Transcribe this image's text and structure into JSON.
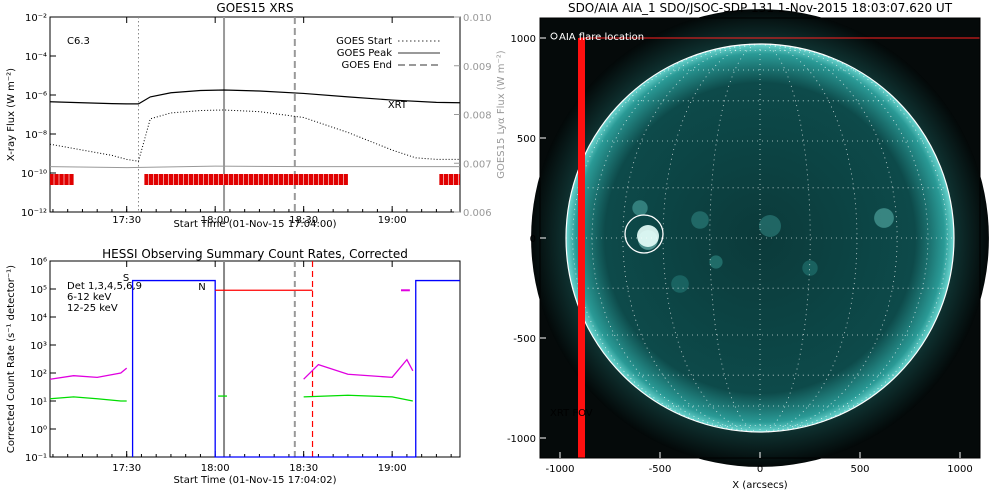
{
  "chart_data": [
    {
      "type": "line",
      "title": "GOES15 XRS",
      "xlabel": "Start Time (01-Nov-15 17:04:00)",
      "ylabel": "X-ray Flux (W m⁻²)",
      "y2label": "GOES15 Lyα Flux (W m⁻²)",
      "y_scale": "log",
      "ylim": [
        1e-12,
        0.01
      ],
      "y2lim": [
        0.006,
        0.01
      ],
      "xlim": [
        "17:04",
        "19:23"
      ],
      "x_ticks": [
        "17:30",
        "18:00",
        "18:30",
        "19:00"
      ],
      "y_ticks": [
        "10⁻²",
        "10⁻⁴",
        "10⁻⁶",
        "10⁻⁸",
        "10⁻¹⁰",
        "10⁻¹²"
      ],
      "y2_ticks": [
        "0.010",
        "0.009",
        "0.008",
        "0.007",
        "0.006"
      ],
      "class_label": "C6.3",
      "xrt_label": "XRT",
      "legend": [
        "GOES Start",
        "GOES Peak",
        "GOES End"
      ],
      "legend_position": "top-right",
      "markers": {
        "start": "17:34",
        "peak": "18:03",
        "end": "18:27"
      },
      "series": [
        {
          "x": [
            "17:04",
            "17:15",
            "17:25",
            "17:30",
            "17:34",
            "17:38",
            "17:45",
            "17:55",
            "18:03",
            "18:15",
            "18:30",
            "18:45",
            "19:00",
            "19:15",
            "19:23"
          ],
          "values": [
            4.5e-07,
            4e-07,
            3.6e-07,
            3.5e-07,
            3.5e-07,
            8e-07,
            1.3e-06,
            1.7e-06,
            1.8e-06,
            1.6e-06,
            1.2e-06,
            8e-07,
            5.5e-07,
            4.2e-07,
            4e-07
          ]
        },
        {
          "x": [
            "17:04",
            "17:15",
            "17:25",
            "17:30",
            "17:34",
            "17:38",
            "17:45",
            "17:55",
            "18:03",
            "18:15",
            "18:30",
            "18:45",
            "19:00",
            "19:08",
            "19:15",
            "19:23"
          ],
          "values": [
            3e-09,
            1.5e-09,
            8e-10,
            5e-10,
            4e-10,
            6e-08,
            1.2e-07,
            1.6e-07,
            1.7e-07,
            1.4e-07,
            7e-08,
            1.2e-08,
            1.5e-09,
            6e-10,
            5e-10,
            5e-10
          ]
        },
        {
          "x": [
            "17:04",
            "17:30",
            "18:00",
            "18:30",
            "19:00",
            "19:23"
          ],
          "values": [
            0.00693,
            0.00691,
            0.00694,
            0.00693,
            0.00693,
            0.00693
          ]
        }
      ],
      "coverage": [
        [
          "17:04",
          "17:12"
        ],
        [
          "17:36",
          "18:45"
        ],
        [
          "19:16",
          "19:23"
        ]
      ]
    },
    {
      "type": "line",
      "title": "HESSI Observing Summary Count Rates, Corrected",
      "xlabel": "Start Time (01-Nov-15 17:04:02)",
      "ylabel": "Corrected Count Rate (s⁻¹ detector⁻¹)",
      "y_scale": "log",
      "ylim": [
        0.1,
        1000000
      ],
      "xlim": [
        "17:04",
        "19:23"
      ],
      "x_ticks": [
        "17:30",
        "18:00",
        "18:30",
        "19:00"
      ],
      "y_ticks": [
        "10⁶",
        "10⁵",
        "10⁴",
        "10³",
        "10²",
        "10¹",
        "10⁰",
        "10⁻¹"
      ],
      "legend": [
        "Det 1,3,4,5,6,9",
        "6-12 keV",
        "12-25 keV"
      ],
      "legend_colors": [
        "#000000",
        "#e000e0",
        "#00dd00"
      ],
      "legend_position": "top-left",
      "flags": [
        "S",
        "N"
      ],
      "markers": {
        "start": "18:03",
        "peak": "18:27",
        "end": "18:33"
      },
      "series": [
        {
          "x": [
            "17:04",
            "17:12",
            "17:20",
            "17:28",
            "17:30",
            "17:31",
            "18:28",
            "18:30",
            "18:35",
            "18:45",
            "19:00",
            "19:05",
            "19:07",
            "19:08"
          ],
          "values": [
            60,
            80,
            70,
            100,
            150,
            null,
            null,
            60,
            200,
            90,
            70,
            300,
            120,
            null
          ]
        },
        {
          "x": [
            "17:04",
            "17:12",
            "17:20",
            "17:28",
            "17:30",
            "17:31",
            "18:00",
            "18:01",
            "18:04",
            "18:05",
            "18:28",
            "18:30",
            "18:45",
            "19:00",
            "19:07",
            "19:08"
          ],
          "values": [
            12,
            14,
            12,
            10,
            10,
            null,
            null,
            15,
            15,
            null,
            null,
            14,
            16,
            14,
            10,
            null
          ]
        },
        {
          "x": [
            "17:32",
            "17:32",
            "18:00",
            "18:00",
            "19:08",
            "19:08",
            "19:23"
          ],
          "values": [
            0.1,
            200000,
            200000,
            0.1,
            0.1,
            200000,
            200000
          ]
        },
        {
          "x": [
            "18:00",
            "18:33"
          ],
          "values": [
            90000,
            90000
          ]
        }
      ],
      "series_colors": [
        "#e000e0",
        "#00dd00",
        "#0000ff",
        "#ff0000"
      ]
    },
    {
      "type": "image",
      "title": "SDO/AIA AIA_1 SDO/JSOC-SDP 131  1-Nov-2015 18:03:07.620 UT",
      "xlabel": "X (arcsecs)",
      "xlim": [
        -1100,
        1100
      ],
      "ylim": [
        -1100,
        1100
      ],
      "x_ticks": [
        "-1000",
        "-500",
        "0",
        "500",
        "1000"
      ],
      "y_ticks": [
        "1000",
        "500",
        "0",
        "-500",
        "-1000"
      ],
      "legend": [
        "AIA flare location",
        "XRT FOV"
      ],
      "flare_location": {
        "x": -580,
        "y": 20
      },
      "xrt_fov": {
        "x": [
          -900,
          1100
        ],
        "y": [
          -1100,
          1000
        ]
      }
    }
  ]
}
